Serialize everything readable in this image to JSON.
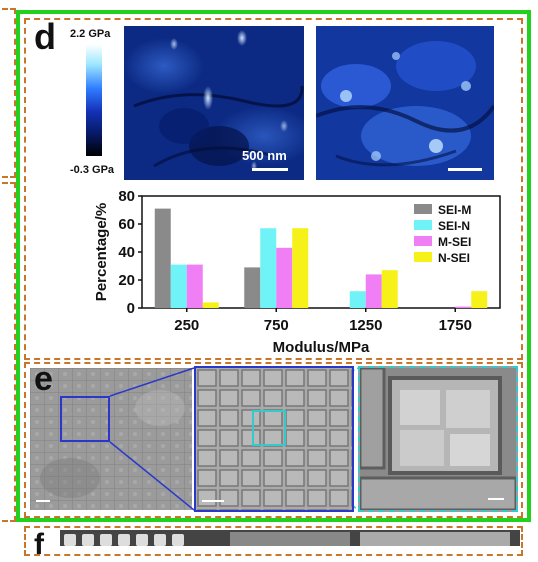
{
  "panel_d": {
    "letter": "d",
    "colorbar": {
      "max_label": "2.2 GPa",
      "min_label": "-0.3 GPa",
      "top_color": "#ffffff",
      "bottom_color": "#000000",
      "mid_color": "#1f46d8"
    },
    "afm_left": {
      "scale_label": "500 nm"
    },
    "afm_right": {}
  },
  "chart_data": {
    "type": "bar",
    "categories": [
      "250",
      "750",
      "1250",
      "1750"
    ],
    "series": [
      {
        "name": "SEI-M",
        "color": "#8a8a8a",
        "values": [
          71,
          29,
          0,
          0
        ]
      },
      {
        "name": "SEI-N",
        "color": "#6ff3f6",
        "values": [
          31,
          57,
          12,
          0
        ]
      },
      {
        "name": "M-SEI",
        "color": "#f07ef4",
        "values": [
          31,
          43,
          24,
          1
        ]
      },
      {
        "name": "N-SEI",
        "color": "#f7f11a",
        "values": [
          4,
          57,
          27,
          12
        ]
      }
    ],
    "xlabel": "Modulus/MPa",
    "ylabel": "Percentage/%",
    "ylim": [
      0,
      80
    ],
    "yticks": [
      "0",
      "20",
      "40",
      "60",
      "80"
    ],
    "legend_position": "top-right"
  },
  "panel_e": {
    "letter": "e"
  },
  "panel_f": {
    "letter": "f"
  }
}
